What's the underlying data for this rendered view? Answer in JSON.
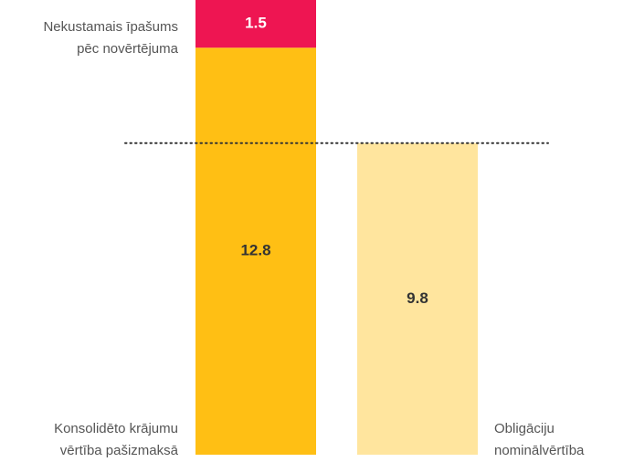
{
  "chart_data": {
    "type": "stacked-bar",
    "categories": [
      null,
      null
    ],
    "series": [
      {
        "name": "Konsolidēto krājumu vērtība pašizmaksā",
        "color": "#ffbf14",
        "values": [
          12.8,
          null
        ]
      },
      {
        "name": "Nekustamais īpašums pēc novērtējuma",
        "color": "#ee1552",
        "values": [
          1.5,
          null
        ]
      },
      {
        "name": "Obligāciju nominālvērtība",
        "color": "#ffe59e",
        "values": [
          null,
          9.8
        ]
      }
    ],
    "ylim": [
      0,
      14.3
    ]
  }
}
